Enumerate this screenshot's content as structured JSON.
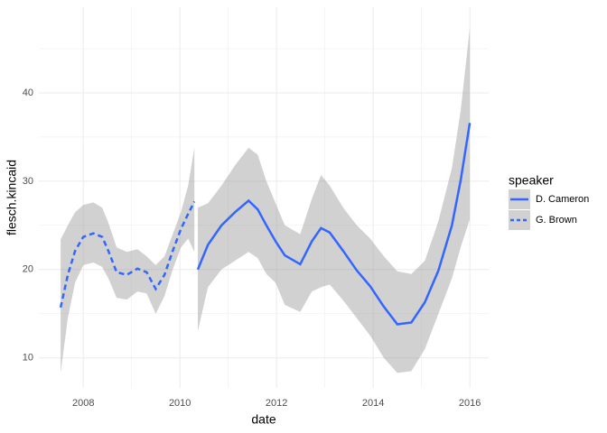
{
  "chart_data": {
    "type": "smooth",
    "x_label": "date",
    "y_label": "flesch.kincaid",
    "legend_title": "speaker",
    "xlim": [
      2007.08,
      2016.39
    ],
    "ylim": [
      6.6,
      49.7
    ],
    "xticks": [
      2008,
      2010,
      2012,
      2014,
      2016
    ],
    "yticks": [
      10,
      20,
      30,
      40
    ],
    "minor_xticks": [
      2009,
      2011,
      2013,
      2015
    ],
    "minor_yticks": [
      15,
      25,
      35,
      45
    ],
    "grid": true,
    "legend_position": "right",
    "band_color": "#999999",
    "series": [
      {
        "name": "D. Cameron",
        "color": "#3366FF",
        "linetype": "solid",
        "x": [
          2010.37,
          2010.58,
          2010.86,
          2011.14,
          2011.42,
          2011.61,
          2011.79,
          2011.98,
          2012.17,
          2012.49,
          2012.73,
          2012.92,
          2013.1,
          2013.38,
          2013.66,
          2013.94,
          2014.22,
          2014.5,
          2014.79,
          2015.07,
          2015.35,
          2015.63,
          2015.81,
          2016.0
        ],
        "values": [
          20.0,
          22.8,
          25.0,
          26.5,
          27.8,
          26.8,
          25.0,
          23.2,
          21.6,
          20.6,
          23.2,
          24.7,
          24.2,
          22.1,
          19.9,
          18.1,
          15.8,
          13.8,
          14.0,
          16.3,
          19.9,
          25.0,
          30.1,
          36.6
        ],
        "upper": [
          27.0,
          27.5,
          29.5,
          31.8,
          33.8,
          33.0,
          30.0,
          27.5,
          25.0,
          24.0,
          28.0,
          30.7,
          29.5,
          27.0,
          25.0,
          23.5,
          21.5,
          19.8,
          19.5,
          21.0,
          25.5,
          31.5,
          38.0,
          47.3
        ],
        "lower": [
          13.0,
          18.0,
          20.0,
          21.0,
          22.0,
          21.3,
          19.5,
          18.5,
          16.0,
          15.2,
          17.5,
          18.0,
          18.3,
          16.5,
          14.5,
          12.5,
          10.0,
          8.3,
          8.5,
          11.0,
          15.0,
          19.0,
          22.5,
          25.7
        ]
      },
      {
        "name": "G. Brown",
        "color": "#3366FF",
        "linetype": "dashed",
        "x": [
          2007.53,
          2007.68,
          2007.83,
          2008.0,
          2008.21,
          2008.39,
          2008.52,
          2008.69,
          2008.9,
          2009.12,
          2009.31,
          2009.5,
          2009.68,
          2009.85,
          2010.02,
          2010.17,
          2010.3
        ],
        "values": [
          15.7,
          19.4,
          22.1,
          23.7,
          24.1,
          23.7,
          22.1,
          19.7,
          19.4,
          20.1,
          19.7,
          17.8,
          19.4,
          22.1,
          24.6,
          26.3,
          27.7
        ],
        "upper": [
          23.4,
          25.0,
          26.5,
          27.3,
          27.6,
          27.0,
          25.3,
          22.5,
          22.0,
          22.3,
          21.5,
          20.5,
          21.5,
          24.0,
          26.5,
          29.5,
          33.8
        ],
        "lower": [
          8.3,
          14.5,
          18.5,
          20.5,
          20.8,
          20.3,
          19.0,
          16.8,
          16.6,
          17.5,
          17.3,
          15.0,
          17.0,
          20.0,
          22.5,
          23.5,
          22.0
        ]
      }
    ]
  }
}
